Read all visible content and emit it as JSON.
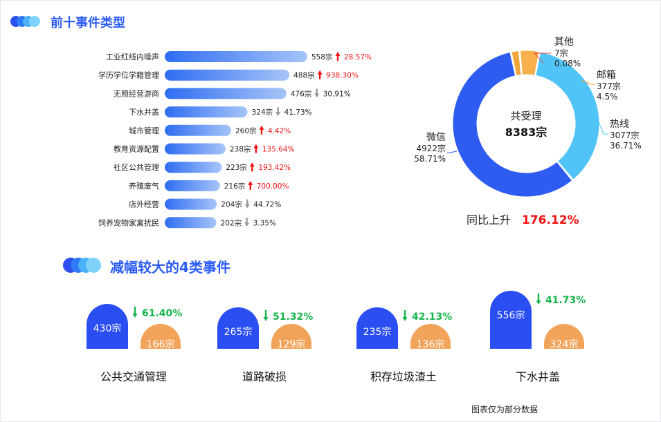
{
  "section1": {
    "title": "前十事件类型",
    "items": [
      {
        "label": "工业红线内噪声",
        "value": 558,
        "count_text": "558宗",
        "change": "28.57%",
        "dir": "up"
      },
      {
        "label": "学历学位学籍管理",
        "value": 488,
        "count_text": "488宗",
        "change": "938.30%",
        "dir": "up"
      },
      {
        "label": "无照经营游商",
        "value": 476,
        "count_text": "476宗",
        "change": "30.91%",
        "dir": "down"
      },
      {
        "label": "下水井盖",
        "value": 324,
        "count_text": "324宗",
        "change": "41.73%",
        "dir": "down"
      },
      {
        "label": "城市管理",
        "value": 260,
        "count_text": "260宗",
        "change": "4.42%",
        "dir": "up"
      },
      {
        "label": "教育资源配置",
        "value": 238,
        "count_text": "238宗",
        "change": "135.64%",
        "dir": "up"
      },
      {
        "label": "社区公共管理",
        "value": 223,
        "count_text": "223宗",
        "change": "193.42%",
        "dir": "up"
      },
      {
        "label": "养殖废气",
        "value": 216,
        "count_text": "216宗",
        "change": "700.00%",
        "dir": "up"
      },
      {
        "label": "店外经营",
        "value": 204,
        "count_text": "204宗",
        "change": "44.72%",
        "dir": "down"
      },
      {
        "label": "饲养宠物家禽扰民",
        "value": 202,
        "count_text": "202宗",
        "change": "3.35%",
        "dir": "down"
      }
    ]
  },
  "donut": {
    "center_label": "共受理",
    "center_value": "8383宗",
    "yoy_label": "同比上升",
    "yoy_value": "176.12%",
    "slices": [
      {
        "name": "其他",
        "count_text": "7宗",
        "pct": "0.08%",
        "value": 7,
        "color": "#f2a63a"
      },
      {
        "name": "邮箱",
        "count_text": "377宗",
        "pct": "4.5%",
        "value": 377,
        "color": "#f7b04c"
      },
      {
        "name": "热线",
        "count_text": "3077宗",
        "pct": "36.71%",
        "value": 3077,
        "color": "#50c4f6"
      },
      {
        "name": "微信",
        "count_text": "4922宗",
        "pct": "58.71%",
        "value": 4922,
        "color": "#2f5cf0"
      }
    ]
  },
  "section2": {
    "title": "减幅较大的4类事件",
    "items": [
      {
        "name": "公共交通管理",
        "prev": 430,
        "prev_text": "430宗",
        "curr": 166,
        "curr_text": "166宗",
        "change": "61.40%"
      },
      {
        "name": "道路破损",
        "prev": 265,
        "prev_text": "265宗",
        "curr": 129,
        "curr_text": "129宗",
        "change": "51.32%"
      },
      {
        "name": "积存垃圾渣土",
        "prev": 235,
        "prev_text": "235宗",
        "curr": 136,
        "curr_text": "136宗",
        "change": "42.13%"
      },
      {
        "name": "下水井盖",
        "prev": 556,
        "prev_text": "556宗",
        "curr": 324,
        "curr_text": "324宗",
        "change": "41.73%"
      }
    ]
  },
  "footer": "图表仅为部分数据",
  "chart_data": [
    {
      "type": "bar",
      "title": "前十事件类型",
      "categories": [
        "工业红线内噪声",
        "学历学位学籍管理",
        "无照经营游商",
        "下水井盖",
        "城市管理",
        "教育资源配置",
        "社区公共管理",
        "养殖废气",
        "店外经营",
        "饲养宠物家禽扰民"
      ],
      "values": [
        558,
        488,
        476,
        324,
        260,
        238,
        223,
        216,
        204,
        202
      ],
      "changes": [
        "28.57%",
        "938.30%",
        "30.91%",
        "41.73%",
        "4.42%",
        "135.64%",
        "193.42%",
        "700.00%",
        "44.72%",
        "3.35%"
      ],
      "change_dirs": [
        "up",
        "up",
        "down",
        "down",
        "up",
        "up",
        "up",
        "up",
        "down",
        "down"
      ]
    },
    {
      "type": "pie",
      "labels": [
        "其他",
        "邮箱",
        "热线",
        "微信"
      ],
      "values": [
        7,
        377,
        3077,
        4922
      ],
      "percents": [
        "0.08%",
        "4.5%",
        "36.71%",
        "58.71%"
      ],
      "total": 8383
    },
    {
      "type": "bar",
      "title": "减幅较大的4类事件",
      "categories": [
        "公共交通管理",
        "道路破损",
        "积存垃圾渣土",
        "下水井盖"
      ],
      "series": [
        {
          "values": [
            430,
            265,
            235,
            556
          ]
        },
        {
          "values": [
            166,
            129,
            136,
            324
          ]
        }
      ],
      "changes": [
        "61.40%",
        "51.32%",
        "42.13%",
        "41.73%"
      ]
    }
  ],
  "colors": {
    "accent": "#2d5df5",
    "bar_start": "#2f6df2",
    "bar_end": "#9bbdf7",
    "up": "#f01414",
    "down": "#999999",
    "decrease": "#16b54c",
    "prev_bar": "#2a4ef2",
    "curr_bar": "#f2a35a"
  }
}
